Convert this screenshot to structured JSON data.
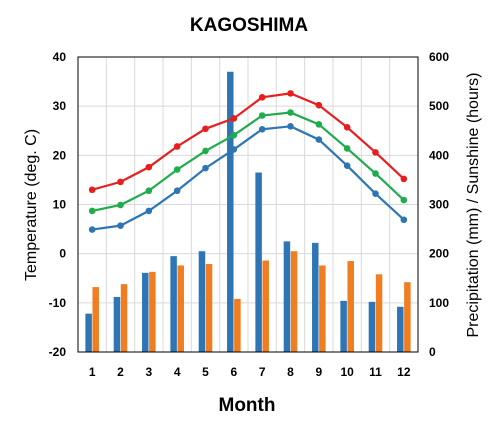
{
  "chart_data": {
    "type": "bar+line",
    "title": "KAGOSHIMA",
    "xlabel": "Month",
    "ylabel_left": "Temperature (deg. C)",
    "ylabel_right": "Precipitation (mm) / Sunshine (hours)",
    "categories": [
      "1",
      "2",
      "3",
      "4",
      "5",
      "6",
      "7",
      "8",
      "9",
      "10",
      "11",
      "12"
    ],
    "y_left": {
      "min": -20,
      "max": 40,
      "ticks": [
        "-20",
        "-10",
        "0",
        "10",
        "20",
        "30",
        "40"
      ]
    },
    "y_right": {
      "min": 0,
      "max": 600,
      "ticks": [
        "0",
        "100",
        "200",
        "300",
        "400",
        "500",
        "600"
      ]
    },
    "grid": true,
    "bar_series": [
      {
        "axis": "right",
        "color": "#2e75b6",
        "values": [
          78,
          112,
          161,
          195,
          205,
          570,
          365,
          225,
          222,
          104,
          102,
          92
        ]
      },
      {
        "axis": "right",
        "color": "#f07d1f",
        "values": [
          132,
          138,
          163,
          176,
          179,
          108,
          186,
          205,
          176,
          185,
          158,
          142
        ]
      }
    ],
    "line_series": [
      {
        "axis": "left",
        "color": "#e81e1e",
        "values": [
          13.0,
          14.6,
          17.6,
          21.8,
          25.4,
          27.5,
          31.8,
          32.6,
          30.2,
          25.7,
          20.6,
          15.2
        ]
      },
      {
        "axis": "left",
        "color": "#1fac4d",
        "values": [
          8.7,
          9.9,
          12.8,
          17.1,
          20.9,
          24.1,
          28.1,
          28.7,
          26.3,
          21.4,
          16.3,
          10.9
        ]
      },
      {
        "axis": "left",
        "color": "#2e75b6",
        "values": [
          4.9,
          5.7,
          8.7,
          12.8,
          17.4,
          21.2,
          25.3,
          25.9,
          23.2,
          17.9,
          12.2,
          6.9
        ]
      }
    ]
  }
}
